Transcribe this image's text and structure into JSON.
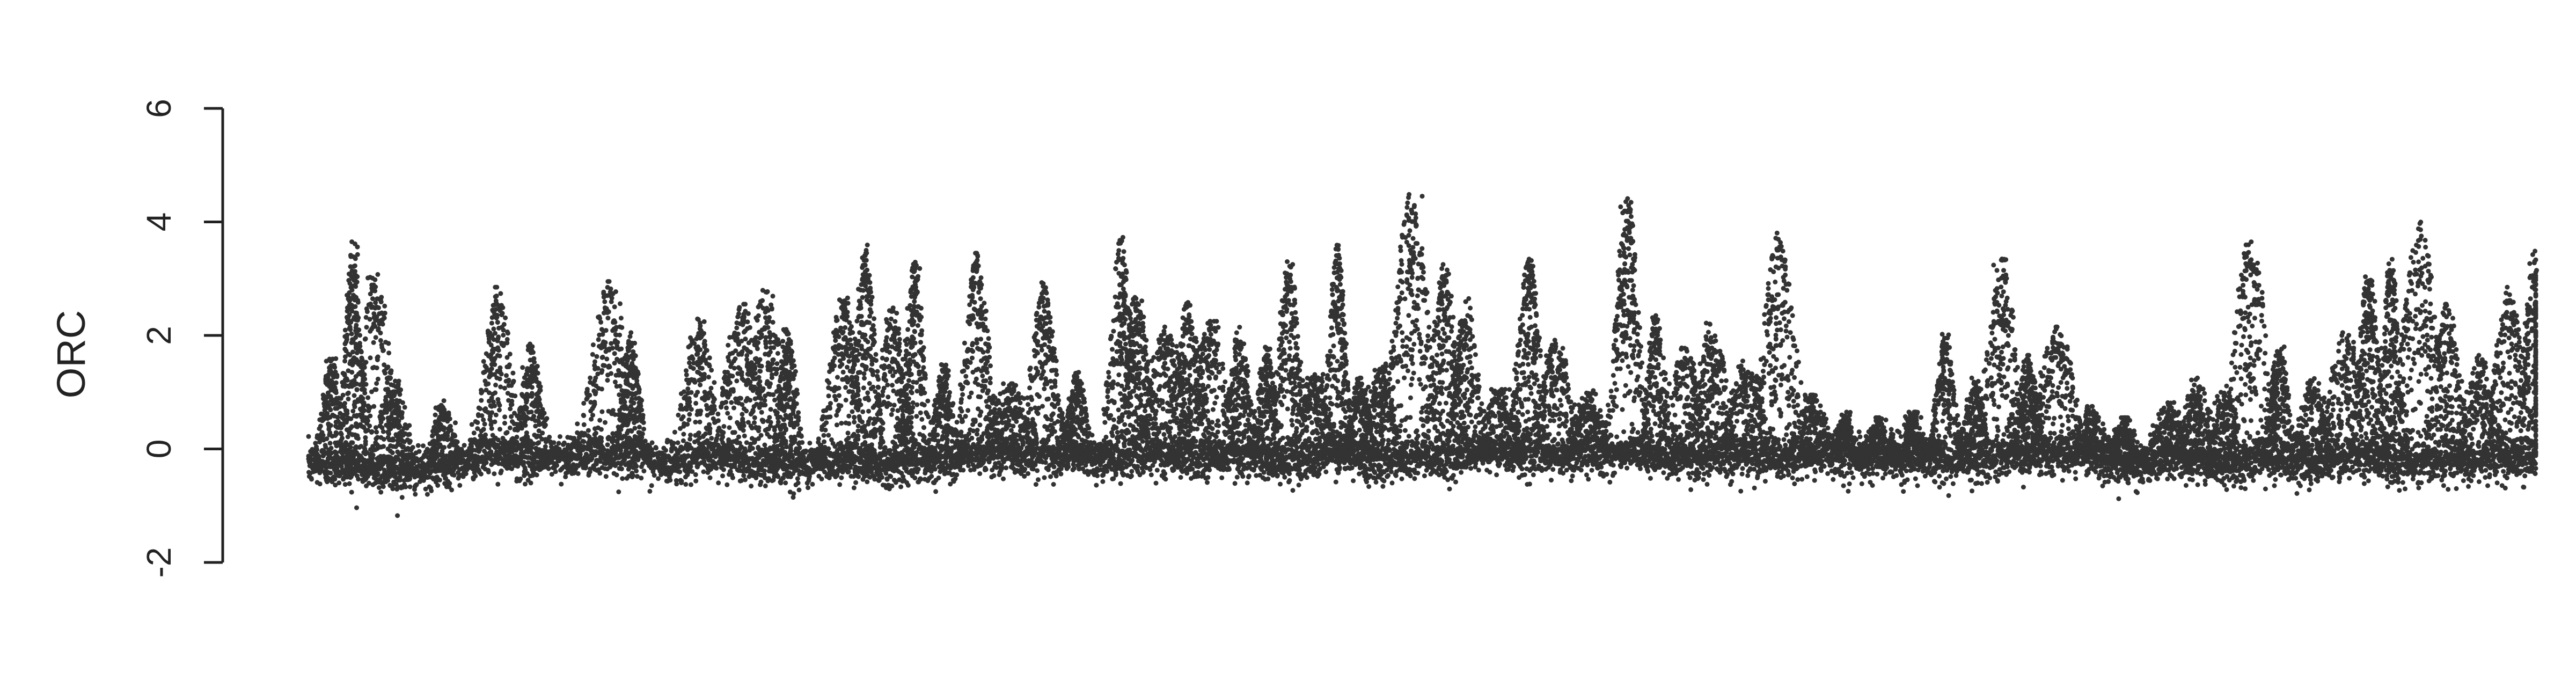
{
  "chart_data": {
    "type": "scatter",
    "title": "",
    "xlabel": "",
    "ylabel": "ORC",
    "ylim": [
      -2,
      6
    ],
    "xlim": [
      0,
      1
    ],
    "y_ticks": [
      -2,
      0,
      2,
      4,
      6
    ],
    "grid": false,
    "legend": "none",
    "point_color": "#333333",
    "series": [
      {
        "description_note_free": true,
        "values": [],
        "baseline": [
          [
            0.0,
            -0.28
          ],
          [
            0.02,
            -0.3
          ],
          [
            0.04,
            -0.42
          ],
          [
            0.06,
            -0.32
          ],
          [
            0.08,
            -0.08
          ],
          [
            0.1,
            -0.18
          ],
          [
            0.12,
            -0.1
          ],
          [
            0.14,
            -0.06
          ],
          [
            0.16,
            -0.28
          ],
          [
            0.18,
            -0.12
          ],
          [
            0.2,
            -0.22
          ],
          [
            0.22,
            -0.3
          ],
          [
            0.24,
            -0.18
          ],
          [
            0.26,
            -0.28
          ],
          [
            0.28,
            -0.18
          ],
          [
            0.3,
            -0.08
          ],
          [
            0.32,
            -0.12
          ],
          [
            0.34,
            -0.08
          ],
          [
            0.36,
            -0.2
          ],
          [
            0.38,
            -0.06
          ],
          [
            0.4,
            -0.18
          ],
          [
            0.42,
            -0.12
          ],
          [
            0.44,
            -0.22
          ],
          [
            0.46,
            -0.1
          ],
          [
            0.48,
            -0.2
          ],
          [
            0.5,
            -0.14
          ],
          [
            0.52,
            -0.12
          ],
          [
            0.54,
            -0.04
          ],
          [
            0.56,
            -0.12
          ],
          [
            0.58,
            -0.08
          ],
          [
            0.6,
            -0.12
          ],
          [
            0.62,
            -0.16
          ],
          [
            0.64,
            -0.12
          ],
          [
            0.66,
            -0.18
          ],
          [
            0.68,
            -0.06
          ],
          [
            0.7,
            -0.18
          ],
          [
            0.72,
            -0.14
          ],
          [
            0.74,
            -0.2
          ],
          [
            0.76,
            -0.12
          ],
          [
            0.78,
            -0.06
          ],
          [
            0.8,
            -0.1
          ],
          [
            0.82,
            -0.3
          ],
          [
            0.84,
            -0.14
          ],
          [
            0.86,
            -0.32
          ],
          [
            0.88,
            -0.18
          ],
          [
            0.9,
            -0.26
          ],
          [
            0.92,
            -0.12
          ],
          [
            0.94,
            -0.26
          ],
          [
            0.96,
            -0.18
          ],
          [
            0.98,
            -0.14
          ],
          [
            1.0,
            -0.2
          ]
        ],
        "peaks": [
          [
            0.01,
            1.6
          ],
          [
            0.02,
            3.6
          ],
          [
            0.03,
            3.1
          ],
          [
            0.038,
            1.2
          ],
          [
            0.06,
            0.8
          ],
          [
            0.085,
            2.8
          ],
          [
            0.1,
            1.8
          ],
          [
            0.135,
            2.9
          ],
          [
            0.145,
            2.0
          ],
          [
            0.175,
            2.3
          ],
          [
            0.195,
            2.5
          ],
          [
            0.205,
            2.8
          ],
          [
            0.215,
            2.2
          ],
          [
            0.24,
            2.7
          ],
          [
            0.25,
            3.6
          ],
          [
            0.262,
            2.5
          ],
          [
            0.272,
            3.3
          ],
          [
            0.285,
            1.5
          ],
          [
            0.3,
            3.4
          ],
          [
            0.315,
            1.1
          ],
          [
            0.33,
            2.9
          ],
          [
            0.345,
            1.3
          ],
          [
            0.365,
            3.7
          ],
          [
            0.372,
            2.7
          ],
          [
            0.385,
            2.1
          ],
          [
            0.395,
            2.6
          ],
          [
            0.405,
            2.2
          ],
          [
            0.418,
            2.1
          ],
          [
            0.43,
            1.8
          ],
          [
            0.44,
            3.3
          ],
          [
            0.452,
            1.4
          ],
          [
            0.462,
            3.6
          ],
          [
            0.472,
            1.2
          ],
          [
            0.482,
            1.5
          ],
          [
            0.495,
            4.5
          ],
          [
            0.51,
            3.2
          ],
          [
            0.52,
            2.6
          ],
          [
            0.535,
            1.0
          ],
          [
            0.548,
            3.4
          ],
          [
            0.56,
            1.9
          ],
          [
            0.575,
            1.0
          ],
          [
            0.592,
            4.5
          ],
          [
            0.605,
            2.3
          ],
          [
            0.618,
            1.8
          ],
          [
            0.63,
            2.2
          ],
          [
            0.645,
            1.5
          ],
          [
            0.66,
            3.8
          ],
          [
            0.675,
            0.9
          ],
          [
            0.69,
            0.6
          ],
          [
            0.705,
            0.5
          ],
          [
            0.72,
            0.6
          ],
          [
            0.735,
            2.0
          ],
          [
            0.748,
            1.2
          ],
          [
            0.76,
            3.4
          ],
          [
            0.772,
            1.6
          ],
          [
            0.785,
            2.1
          ],
          [
            0.8,
            0.7
          ],
          [
            0.815,
            0.5
          ],
          [
            0.835,
            0.8
          ],
          [
            0.848,
            1.2
          ],
          [
            0.86,
            1.0
          ],
          [
            0.872,
            3.7
          ],
          [
            0.885,
            1.8
          ],
          [
            0.9,
            1.2
          ],
          [
            0.915,
            2.0
          ],
          [
            0.925,
            3.1
          ],
          [
            0.935,
            3.3
          ],
          [
            0.948,
            4.0
          ],
          [
            0.96,
            2.5
          ],
          [
            0.975,
            1.6
          ],
          [
            0.988,
            2.8
          ],
          [
            1.0,
            3.5
          ]
        ]
      }
    ]
  }
}
